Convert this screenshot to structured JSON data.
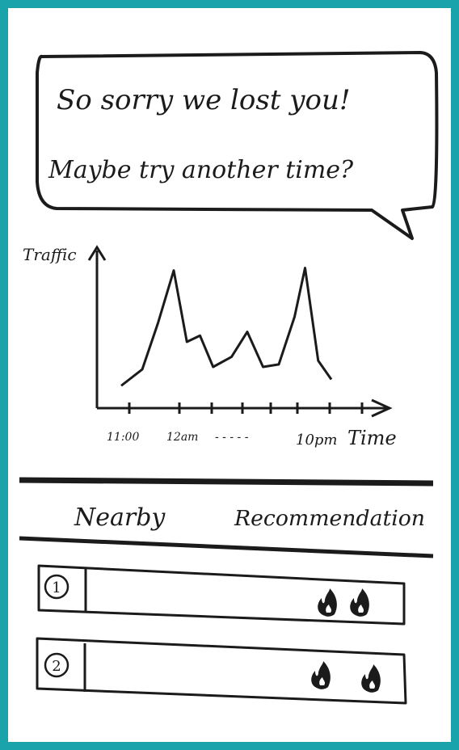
{
  "message": {
    "line1": "So sorry we lost you!",
    "line2": "Maybe try another time?"
  },
  "chart_data": {
    "type": "line",
    "ylabel": "Traffic",
    "xlabel": "Time",
    "x_tick_labels": [
      "11:00",
      "12am",
      "10pm"
    ],
    "x_ellipsis": "- - - - -",
    "series": [
      {
        "values": [
          [
            0.0,
            0.05
          ],
          [
            0.08,
            0.18
          ],
          [
            0.14,
            0.55
          ],
          [
            0.2,
            0.97
          ],
          [
            0.25,
            0.4
          ],
          [
            0.3,
            0.45
          ],
          [
            0.35,
            0.2
          ],
          [
            0.42,
            0.28
          ],
          [
            0.48,
            0.48
          ],
          [
            0.54,
            0.2
          ],
          [
            0.6,
            0.22
          ],
          [
            0.66,
            0.6
          ],
          [
            0.7,
            0.99
          ],
          [
            0.75,
            0.25
          ],
          [
            0.8,
            0.1
          ]
        ]
      }
    ]
  },
  "nav": {
    "tab1": "Nearby",
    "tab2": "Recommendation"
  },
  "list": {
    "items": [
      {
        "number": "1",
        "rating": "2"
      },
      {
        "number": "2",
        "rating": "2"
      }
    ]
  }
}
